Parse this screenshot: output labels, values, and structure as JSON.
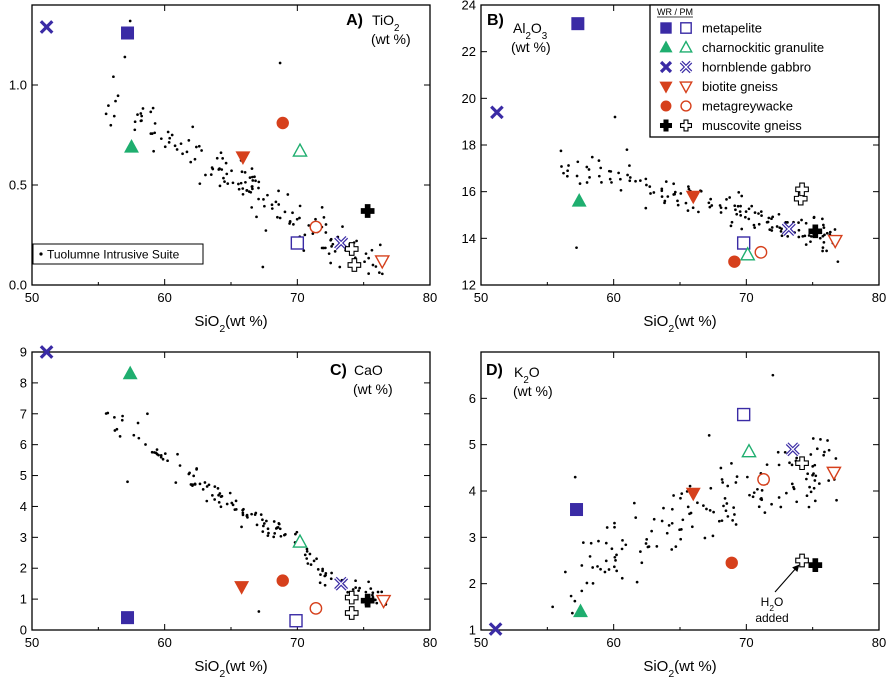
{
  "colors": {
    "metapelite": "#3a2ba5",
    "charnockitic granulite": "#1fae6f",
    "hornblende gabbro": "#3a2ba5",
    "biotite gneiss": "#d6401c",
    "metagreywacke": "#d6401c",
    "muscovite gneiss": "#000000",
    "suite": "#000000"
  },
  "legend": {
    "header": "WR / PM",
    "items": [
      {
        "label": "metapelite",
        "shape": "square",
        "color_key": "metapelite"
      },
      {
        "label": "charnockitic granulite",
        "shape": "triangle-up",
        "color_key": "charnockitic granulite"
      },
      {
        "label": "hornblende gabbro",
        "shape": "x",
        "color_key": "hornblende gabbro"
      },
      {
        "label": "biotite gneiss",
        "shape": "triangle-down",
        "color_key": "biotite gneiss"
      },
      {
        "label": "metagreywacke",
        "shape": "circle",
        "color_key": "metagreywacke"
      },
      {
        "label": "muscovite gneiss",
        "shape": "plus",
        "color_key": "muscovite gneiss"
      }
    ]
  },
  "suite_legend": {
    "label": "Tuolumne Intrusive Suite"
  },
  "chart_data": [
    {
      "panel": "A",
      "letter": "A)",
      "var_parts": [
        {
          "t": "TiO"
        },
        {
          "t": "2",
          "sub": true
        }
      ],
      "unit": "(wt %)",
      "xlabel_parts": [
        {
          "t": "SiO"
        },
        {
          "t": "2",
          "sub": true
        },
        {
          "t": "(wt %)"
        }
      ],
      "type": "scatter",
      "xlim": [
        50,
        80
      ],
      "ylim": [
        0,
        1.4
      ],
      "xticks": [
        50,
        60,
        70,
        80
      ],
      "yticks": [
        0.0,
        0.5,
        1.0
      ],
      "ytick_labels": [
        "0.0",
        "0.5",
        "1.0"
      ],
      "show_legend": false,
      "show_suite_legend": true,
      "series": [
        {
          "name": "metapelite",
          "points": [
            {
              "x": 57.2,
              "y": 1.26,
              "fill": "WR"
            },
            {
              "x": 70.0,
              "y": 0.21,
              "fill": "PM"
            }
          ]
        },
        {
          "name": "charnockitic granulite",
          "points": [
            {
              "x": 57.5,
              "y": 0.69,
              "fill": "WR"
            },
            {
              "x": 70.2,
              "y": 0.67,
              "fill": "PM"
            }
          ]
        },
        {
          "name": "hornblende gabbro",
          "points": [
            {
              "x": 51.1,
              "y": 1.29,
              "fill": "WR"
            },
            {
              "x": 73.3,
              "y": 0.21,
              "fill": "PM"
            }
          ]
        },
        {
          "name": "biotite gneiss",
          "points": [
            {
              "x": 65.9,
              "y": 0.64,
              "fill": "WR"
            },
            {
              "x": 76.4,
              "y": 0.12,
              "fill": "PM"
            }
          ]
        },
        {
          "name": "metagreywacke",
          "points": [
            {
              "x": 68.9,
              "y": 0.81,
              "fill": "WR"
            },
            {
              "x": 71.4,
              "y": 0.29,
              "fill": "PM"
            }
          ]
        },
        {
          "name": "muscovite gneiss",
          "points": [
            {
              "x": 75.3,
              "y": 0.37,
              "fill": "WR"
            },
            {
              "x": 74.1,
              "y": 0.18,
              "fill": "PM"
            },
            {
              "x": 74.3,
              "y": 0.1,
              "fill": "PM"
            }
          ]
        }
      ],
      "suite": {
        "seed": 11,
        "n": 150,
        "trend": [
          [
            55.5,
            0.95
          ],
          [
            60,
            0.76
          ],
          [
            65,
            0.56
          ],
          [
            70,
            0.31
          ],
          [
            76.8,
            0.1
          ]
        ],
        "spread": 0.055,
        "yclip": [
          0.05,
          1.35
        ],
        "extra": [
          [
            57.4,
            1.32
          ],
          [
            57.0,
            1.14
          ],
          [
            68.7,
            1.11
          ],
          [
            67.4,
            0.09
          ],
          [
            73.2,
            0.09
          ],
          [
            75.7,
            0.1
          ]
        ]
      }
    },
    {
      "panel": "B",
      "letter": "B)",
      "var_parts": [
        {
          "t": "Al"
        },
        {
          "t": "2",
          "sub": true
        },
        {
          "t": "O"
        },
        {
          "t": "3",
          "sub": true
        }
      ],
      "unit": "(wt %)",
      "xlabel_parts": [
        {
          "t": "SiO"
        },
        {
          "t": "2",
          "sub": true
        },
        {
          "t": "(wt %)"
        }
      ],
      "type": "scatter",
      "xlim": [
        50,
        80
      ],
      "ylim": [
        12,
        24
      ],
      "xticks": [
        50,
        60,
        70,
        80
      ],
      "yticks": [
        12,
        14,
        16,
        18,
        20,
        22,
        24
      ],
      "ytick_labels": [
        "12",
        "14",
        "16",
        "18",
        "20",
        "22",
        "24"
      ],
      "show_legend": true,
      "show_suite_legend": false,
      "series": [
        {
          "name": "metapelite",
          "points": [
            {
              "x": 57.3,
              "y": 23.2,
              "fill": "WR"
            },
            {
              "x": 69.8,
              "y": 13.8,
              "fill": "PM"
            }
          ]
        },
        {
          "name": "charnockitic granulite",
          "points": [
            {
              "x": 57.4,
              "y": 15.6,
              "fill": "WR"
            },
            {
              "x": 70.1,
              "y": 13.3,
              "fill": "PM"
            }
          ]
        },
        {
          "name": "hornblende gabbro",
          "points": [
            {
              "x": 51.2,
              "y": 19.4,
              "fill": "WR"
            },
            {
              "x": 73.2,
              "y": 14.4,
              "fill": "PM"
            }
          ]
        },
        {
          "name": "biotite gneiss",
          "points": [
            {
              "x": 66.0,
              "y": 15.8,
              "fill": "WR"
            },
            {
              "x": 76.7,
              "y": 13.9,
              "fill": "PM"
            }
          ]
        },
        {
          "name": "metagreywacke",
          "points": [
            {
              "x": 69.1,
              "y": 13.0,
              "fill": "WR"
            },
            {
              "x": 71.1,
              "y": 13.4,
              "fill": "PM"
            }
          ]
        },
        {
          "name": "muscovite gneiss",
          "points": [
            {
              "x": 75.2,
              "y": 14.3,
              "fill": "WR"
            },
            {
              "x": 74.1,
              "y": 15.7,
              "fill": "PM"
            },
            {
              "x": 74.2,
              "y": 16.1,
              "fill": "PM"
            }
          ]
        }
      ],
      "suite": {
        "seed": 23,
        "n": 150,
        "trend": [
          [
            55.5,
            17.3
          ],
          [
            60,
            16.6
          ],
          [
            65,
            15.8
          ],
          [
            70,
            15.1
          ],
          [
            76.8,
            14.0
          ]
        ],
        "spread": 0.35,
        "yclip": [
          12.6,
          19.5
        ],
        "extra": [
          [
            60.1,
            19.2
          ],
          [
            57.2,
            13.6
          ],
          [
            61.0,
            17.8
          ],
          [
            76.9,
            13.0
          ]
        ]
      }
    },
    {
      "panel": "C",
      "letter": "C)",
      "var_parts": [
        {
          "t": "CaO"
        }
      ],
      "unit": "(wt %)",
      "xlabel_parts": [
        {
          "t": "SiO"
        },
        {
          "t": "2",
          "sub": true
        },
        {
          "t": "(wt %)"
        }
      ],
      "type": "scatter",
      "xlim": [
        50,
        80
      ],
      "ylim": [
        0,
        9
      ],
      "xticks": [
        50,
        60,
        70,
        80
      ],
      "yticks": [
        0,
        1,
        2,
        3,
        4,
        5,
        6,
        7,
        8,
        9
      ],
      "ytick_labels": [
        "0",
        "1",
        "2",
        "3",
        "4",
        "5",
        "6",
        "7",
        "8",
        "9"
      ],
      "show_legend": false,
      "show_suite_legend": false,
      "series": [
        {
          "name": "metapelite",
          "points": [
            {
              "x": 57.2,
              "y": 0.4,
              "fill": "WR"
            },
            {
              "x": 69.9,
              "y": 0.3,
              "fill": "PM"
            }
          ]
        },
        {
          "name": "charnockitic granulite",
          "points": [
            {
              "x": 57.4,
              "y": 8.3,
              "fill": "WR"
            },
            {
              "x": 70.2,
              "y": 2.85,
              "fill": "PM"
            }
          ]
        },
        {
          "name": "hornblende gabbro",
          "points": [
            {
              "x": 51.1,
              "y": 9.0,
              "fill": "WR"
            },
            {
              "x": 73.3,
              "y": 1.5,
              "fill": "PM"
            }
          ]
        },
        {
          "name": "biotite gneiss",
          "points": [
            {
              "x": 65.8,
              "y": 1.4,
              "fill": "WR"
            },
            {
              "x": 76.5,
              "y": 0.95,
              "fill": "PM"
            }
          ]
        },
        {
          "name": "metagreywacke",
          "points": [
            {
              "x": 68.9,
              "y": 1.6,
              "fill": "WR"
            },
            {
              "x": 71.4,
              "y": 0.7,
              "fill": "PM"
            }
          ]
        },
        {
          "name": "muscovite gneiss",
          "points": [
            {
              "x": 75.3,
              "y": 0.95,
              "fill": "WR"
            },
            {
              "x": 74.1,
              "y": 1.05,
              "fill": "PM"
            },
            {
              "x": 74.1,
              "y": 0.55,
              "fill": "PM"
            }
          ]
        }
      ],
      "suite": {
        "seed": 37,
        "n": 150,
        "trend": [
          [
            55.2,
            7.1
          ],
          [
            58.5,
            6.1
          ],
          [
            62,
            4.9
          ],
          [
            66,
            3.7
          ],
          [
            70,
            2.9
          ],
          [
            72,
            1.7
          ],
          [
            76.8,
            0.9
          ]
        ],
        "spread": 0.2,
        "yclip": [
          0.2,
          7.2
        ],
        "extra": [
          [
            57.2,
            4.8
          ],
          [
            56.4,
            6.5
          ],
          [
            58.7,
            7.0
          ],
          [
            67.1,
            0.6
          ]
        ]
      }
    },
    {
      "panel": "D",
      "letter": "D)",
      "var_parts": [
        {
          "t": "K"
        },
        {
          "t": "2",
          "sub": true
        },
        {
          "t": "O"
        }
      ],
      "unit": "(wt %)",
      "xlabel_parts": [
        {
          "t": "SiO"
        },
        {
          "t": "2",
          "sub": true
        },
        {
          "t": "(wt %)"
        }
      ],
      "type": "scatter",
      "xlim": [
        50,
        80
      ],
      "ylim": [
        1,
        7
      ],
      "xticks": [
        50,
        60,
        70,
        80
      ],
      "yticks": [
        1,
        2,
        3,
        4,
        5,
        6
      ],
      "ytick_labels": [
        "1",
        "2",
        "3",
        "4",
        "5",
        "6"
      ],
      "show_legend": false,
      "show_suite_legend": false,
      "annotation": {
        "line1_parts": [
          {
            "t": "H"
          },
          {
            "t": "2",
            "sub": true
          },
          {
            "t": "O"
          }
        ],
        "line2": "added",
        "x": 72.0,
        "y": 1.85,
        "arrow_to": [
          74.0,
          2.5
        ]
      },
      "series": [
        {
          "name": "metapelite",
          "points": [
            {
              "x": 57.2,
              "y": 3.6,
              "fill": "WR"
            },
            {
              "x": 69.8,
              "y": 5.65,
              "fill": "PM"
            }
          ]
        },
        {
          "name": "charnockitic granulite",
          "points": [
            {
              "x": 57.5,
              "y": 1.4,
              "fill": "WR"
            },
            {
              "x": 70.2,
              "y": 4.85,
              "fill": "PM"
            }
          ]
        },
        {
          "name": "hornblende gabbro",
          "points": [
            {
              "x": 51.1,
              "y": 1.02,
              "fill": "WR"
            },
            {
              "x": 73.5,
              "y": 4.9,
              "fill": "PM"
            }
          ]
        },
        {
          "name": "biotite gneiss",
          "points": [
            {
              "x": 66.0,
              "y": 3.95,
              "fill": "WR"
            },
            {
              "x": 76.6,
              "y": 4.4,
              "fill": "PM"
            }
          ]
        },
        {
          "name": "metagreywacke",
          "points": [
            {
              "x": 68.9,
              "y": 2.45,
              "fill": "WR"
            },
            {
              "x": 71.3,
              "y": 4.25,
              "fill": "PM"
            }
          ]
        },
        {
          "name": "muscovite gneiss",
          "points": [
            {
              "x": 75.2,
              "y": 2.4,
              "fill": "WR"
            },
            {
              "x": 74.2,
              "y": 4.6,
              "fill": "PM"
            },
            {
              "x": 74.2,
              "y": 2.5,
              "fill": "PM"
            }
          ]
        }
      ],
      "suite": {
        "seed": 53,
        "n": 150,
        "trend": [
          [
            55.5,
            1.8
          ],
          [
            60,
            2.7
          ],
          [
            65,
            3.4
          ],
          [
            70,
            4.0
          ],
          [
            76.8,
            4.6
          ]
        ],
        "spread": 0.35,
        "yclip": [
          1.3,
          5.3
        ],
        "extra": [
          [
            57.1,
            4.3
          ],
          [
            72.0,
            6.5
          ],
          [
            55.4,
            1.5
          ],
          [
            67.2,
            5.2
          ],
          [
            76.8,
            3.8
          ]
        ]
      }
    }
  ]
}
